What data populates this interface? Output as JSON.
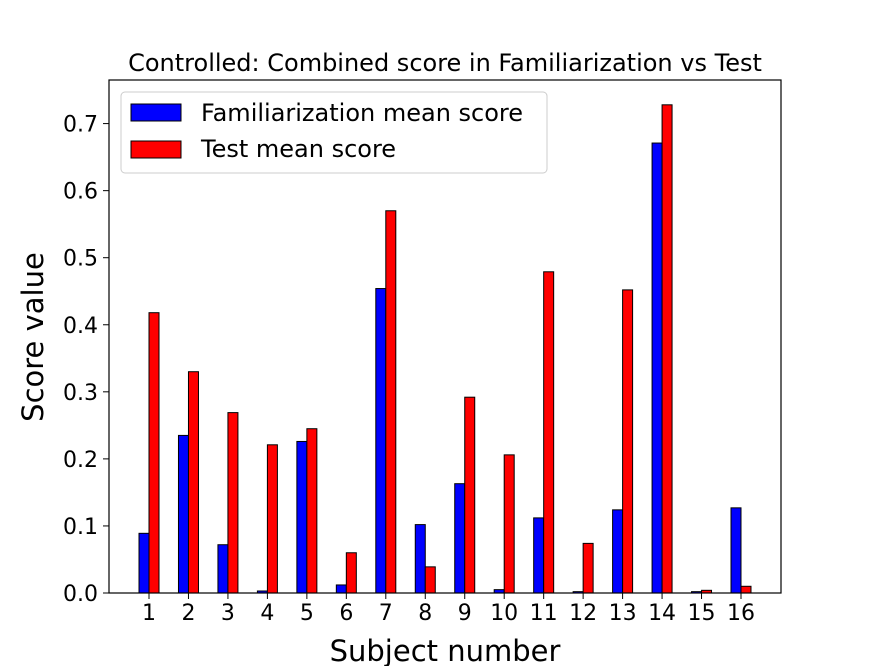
{
  "chart_data": {
    "type": "bar",
    "title": "Controlled: Combined score in Familiarization vs Test",
    "xlabel": "Subject number",
    "ylabel": "Score value",
    "categories": [
      "1",
      "2",
      "3",
      "4",
      "5",
      "6",
      "7",
      "8",
      "9",
      "10",
      "11",
      "12",
      "13",
      "14",
      "15",
      "16"
    ],
    "series": [
      {
        "name": "Familiarization mean score",
        "color": "#0000ff",
        "values": [
          0.089,
          0.235,
          0.072,
          0.003,
          0.226,
          0.012,
          0.454,
          0.102,
          0.163,
          0.005,
          0.112,
          0.002,
          0.124,
          0.671,
          0.002,
          0.127
        ]
      },
      {
        "name": "Test mean score",
        "color": "#ff0000",
        "values": [
          0.418,
          0.33,
          0.269,
          0.221,
          0.245,
          0.06,
          0.57,
          0.039,
          0.292,
          0.206,
          0.479,
          0.074,
          0.452,
          0.728,
          0.004,
          0.01
        ]
      }
    ],
    "yticks": [
      "0.0",
      "0.1",
      "0.2",
      "0.3",
      "0.4",
      "0.5",
      "0.6",
      "0.7"
    ],
    "ylim": [
      0,
      0.765
    ],
    "legend_position": "top-left",
    "grid": false
  }
}
